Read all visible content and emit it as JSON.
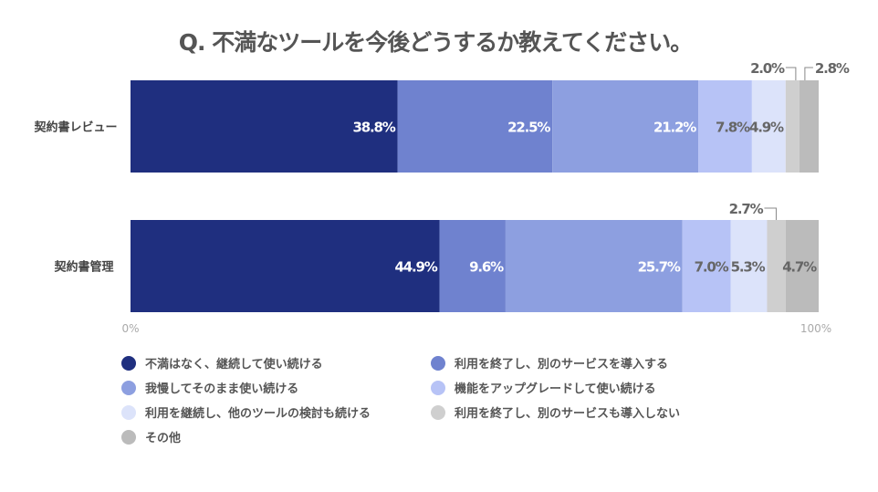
{
  "chart_data": {
    "type": "bar",
    "orientation": "horizontal",
    "stacked": true,
    "title": "Q. 不満なツールを今後どうするか教えてください。",
    "categories": [
      "契約書レビュー",
      "契約書管理"
    ],
    "series": [
      {
        "name": "不満はなく、継続して使い続ける",
        "color": "#1f2f7f",
        "values": [
          38.8,
          44.9
        ]
      },
      {
        "name": "利用を終了し、別のサービスを導入する",
        "color": "#6f82cf",
        "values": [
          22.5,
          9.6
        ]
      },
      {
        "name": "我慢してそのまま使い続ける",
        "color": "#8d9fe0",
        "values": [
          21.2,
          25.7
        ]
      },
      {
        "name": "機能をアップグレードして使い続ける",
        "color": "#b7c3f6",
        "values": [
          7.8,
          7.0
        ]
      },
      {
        "name": "利用を継続し、他のツールの検討も続ける",
        "color": "#dce3fa",
        "values": [
          4.9,
          5.3
        ]
      },
      {
        "name": "利用を終了し、別のサービスも導入しない",
        "color": "#cfcfcf",
        "values": [
          2.0,
          2.7
        ]
      },
      {
        "name": "その他",
        "color": "#bbbbbb",
        "values": [
          2.8,
          4.7
        ]
      }
    ],
    "value_labels": [
      [
        "38.8%",
        "22.5%",
        "21.2%",
        "7.8%",
        "4.9%",
        "2.0%",
        "2.8%"
      ],
      [
        "44.9%",
        "9.6%",
        "25.7%",
        "7.0%",
        "5.3%",
        "2.7%",
        "4.7%"
      ]
    ],
    "xlim": [
      0,
      100
    ],
    "x_ticks": [
      "0%",
      "100%"
    ],
    "legend_position": "bottom",
    "grid": false
  }
}
